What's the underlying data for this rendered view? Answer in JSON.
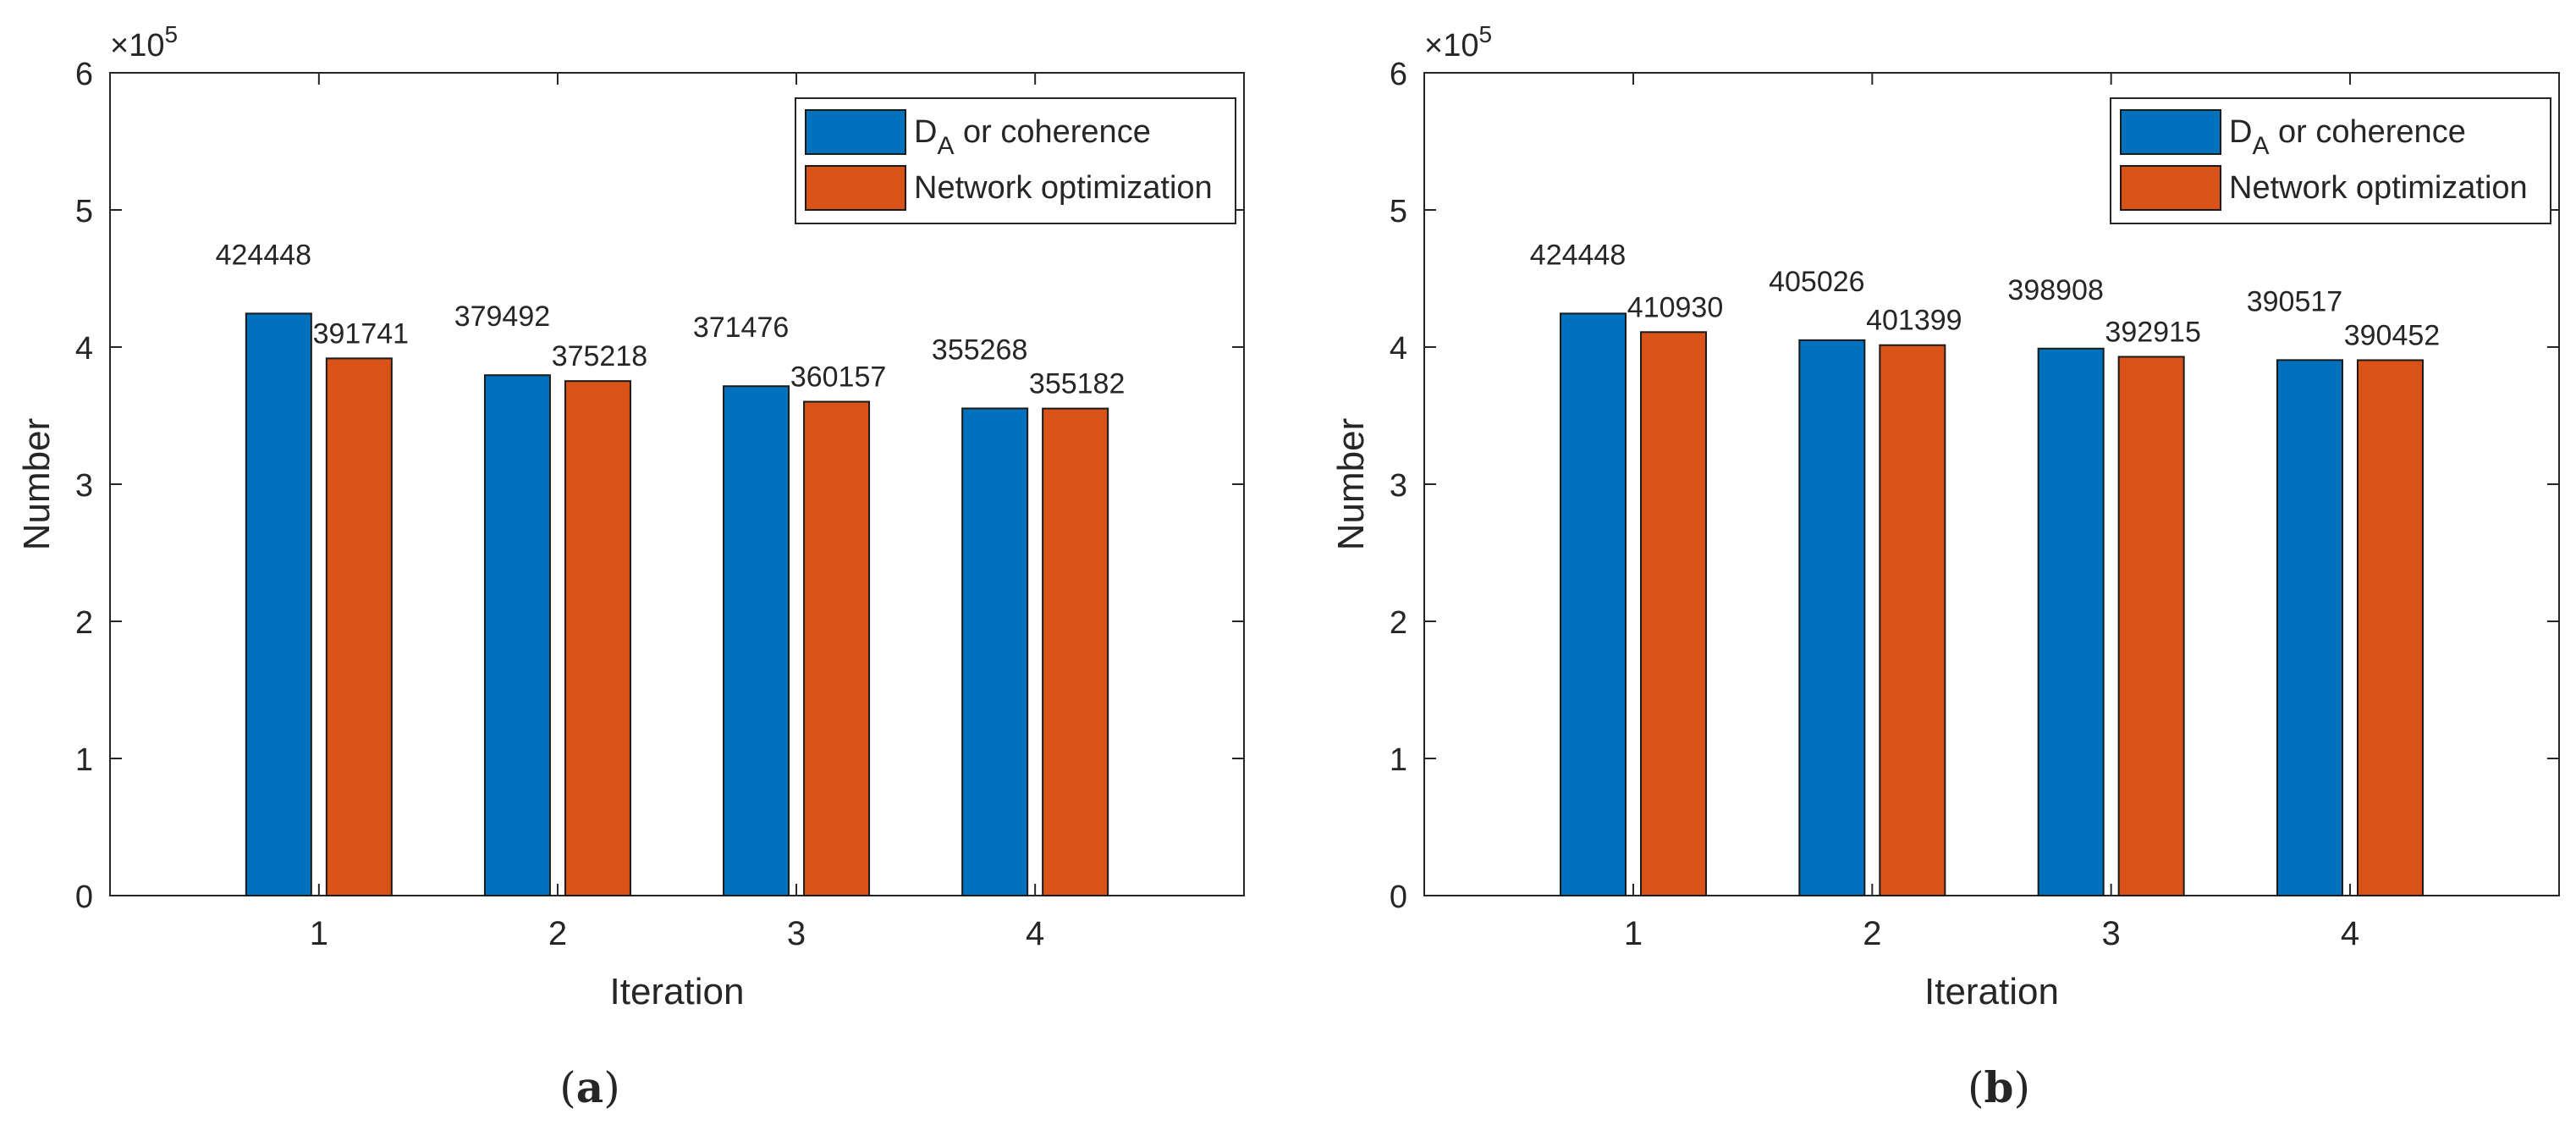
{
  "chart_data": [
    {
      "type": "bar",
      "panel_label": "(a)",
      "xlabel": "Iteration",
      "ylabel": "Number",
      "categories": [
        "1",
        "2",
        "3",
        "4"
      ],
      "ylim": [
        0,
        600000
      ],
      "yticks": [
        0,
        100000,
        200000,
        300000,
        400000,
        500000,
        600000
      ],
      "ytick_labels": [
        "0",
        "1",
        "2",
        "3",
        "4",
        "5",
        "6"
      ],
      "exponent_label": "×10",
      "exponent_power": "5",
      "legend_position": "top-right",
      "series": [
        {
          "name": "D_A or coherence",
          "legend_main": "D",
          "legend_sub": "A",
          "legend_rest": " or coherence",
          "color": "#0072BD",
          "values": [
            424448,
            379492,
            371476,
            355268
          ],
          "labels": [
            "424448",
            "379492",
            "371476",
            "355268"
          ]
        },
        {
          "name": "Network optimization",
          "legend_main": "Network optimization",
          "legend_sub": "",
          "legend_rest": "",
          "color": "#D95319",
          "values": [
            391741,
            375218,
            360157,
            355182
          ],
          "labels": [
            "391741",
            "375218",
            "360157",
            "355182"
          ]
        }
      ]
    },
    {
      "type": "bar",
      "panel_label": "(b)",
      "xlabel": "Iteration",
      "ylabel": "Number",
      "categories": [
        "1",
        "2",
        "3",
        "4"
      ],
      "ylim": [
        0,
        600000
      ],
      "yticks": [
        0,
        100000,
        200000,
        300000,
        400000,
        500000,
        600000
      ],
      "ytick_labels": [
        "0",
        "1",
        "2",
        "3",
        "4",
        "5",
        "6"
      ],
      "exponent_label": "×10",
      "exponent_power": "5",
      "legend_position": "top-right",
      "series": [
        {
          "name": "D_A or coherence",
          "legend_main": "D",
          "legend_sub": "A",
          "legend_rest": " or coherence",
          "color": "#0072BD",
          "values": [
            424448,
            405026,
            398908,
            390517
          ],
          "labels": [
            "424448",
            "405026",
            "398908",
            "390517"
          ]
        },
        {
          "name": "Network optimization",
          "legend_main": "Network optimization",
          "legend_sub": "",
          "legend_rest": "",
          "color": "#D95319",
          "values": [
            410930,
            401399,
            392915,
            390452
          ],
          "labels": [
            "410930",
            "401399",
            "392915",
            "390452"
          ]
        }
      ]
    }
  ]
}
